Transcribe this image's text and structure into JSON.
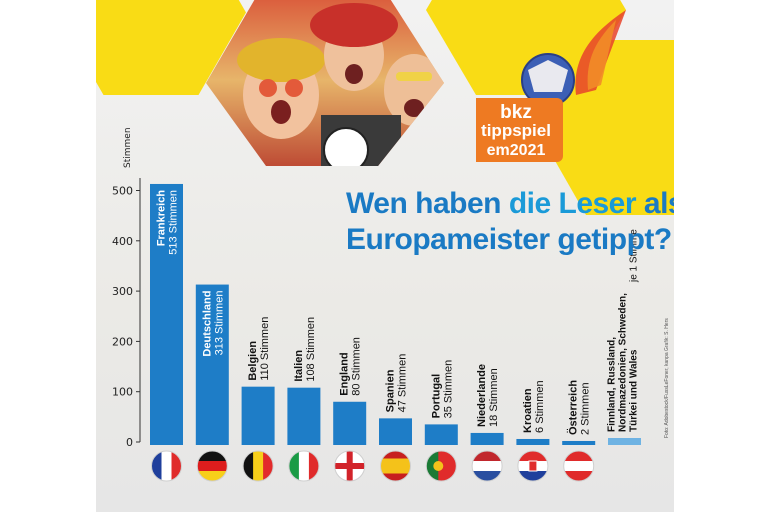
{
  "title": {
    "part1": "Wen haben ",
    "part2": "die Leser",
    "part3": " als Europameister getippt?"
  },
  "logo": {
    "line1": "bkz",
    "line2": "tippspiel",
    "line3": "em2021"
  },
  "credit": "Foto: Adobestock/FussLeFoner, kanpa  Grafik: S. Hers",
  "colors": {
    "bar": "#1e7dc7",
    "bar_light": "#6fb3e3",
    "accent": "#f9dc15",
    "title": "#1a7ac4",
    "logo": "#ee7a22"
  },
  "chart_data": {
    "type": "bar",
    "title": "Wen haben die Leser als Europameister getippt?",
    "ylabel": "Stimmen",
    "ylim": [
      0,
      520
    ],
    "yticks": [
      0,
      100,
      200,
      300,
      400,
      500
    ],
    "grid": false,
    "bars": [
      {
        "name": "Frankreich",
        "value": 513,
        "label": "513 Stimmen",
        "flag": "france"
      },
      {
        "name": "Deutschland",
        "value": 313,
        "label": "313 Stimmen",
        "flag": "germany"
      },
      {
        "name": "Belgien",
        "value": 110,
        "label": "110 Stimmen",
        "flag": "belgium"
      },
      {
        "name": "Italien",
        "value": 108,
        "label": "108 Stimmen",
        "flag": "italy"
      },
      {
        "name": "England",
        "value": 80,
        "label": "80 Stimmen",
        "flag": "england"
      },
      {
        "name": "Spanien",
        "value": 47,
        "label": "47 Stimmen",
        "flag": "spain"
      },
      {
        "name": "Portugal",
        "value": 35,
        "label": "35 Stimmen",
        "flag": "portugal"
      },
      {
        "name": "Niederlande",
        "value": 18,
        "label": "18 Stimmen",
        "flag": "netherlands"
      },
      {
        "name": "Kroatien",
        "value": 6,
        "label": "6 Stimmen",
        "flag": "croatia"
      },
      {
        "name": "Österreich",
        "value": 2,
        "label": "2 Stimmen",
        "flag": "austria"
      },
      {
        "name": "Finnland, Russland, Nordmazedonien, Schweden, Türkei und Wales",
        "value": 1,
        "label": "je 1 Stimme",
        "flag": ""
      }
    ]
  }
}
